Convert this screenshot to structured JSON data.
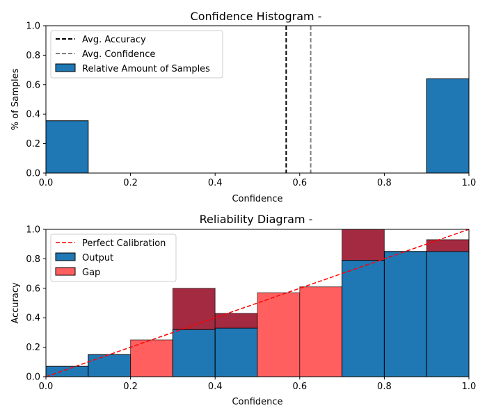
{
  "chart_data": [
    {
      "type": "bar",
      "title": "Confidence Histogram -",
      "xlabel": "Confidence",
      "ylabel": "% of Samples",
      "xlim": [
        0,
        1
      ],
      "ylim": [
        0,
        1
      ],
      "x_ticks": [
        "0.0",
        "0.2",
        "0.4",
        "0.6",
        "0.8",
        "1.0"
      ],
      "y_ticks": [
        "0.0",
        "0.2",
        "0.4",
        "0.6",
        "0.8",
        "1.0"
      ],
      "legend_position": "top-left",
      "legend": [
        "Avg. Accuracy",
        "Avg. Confidence",
        "Relative Amount of Samples"
      ],
      "bins": [
        {
          "x0": 0.0,
          "x1": 0.1,
          "value": 0.355
        },
        {
          "x0": 0.9,
          "x1": 1.0,
          "value": 0.64
        }
      ],
      "avg_accuracy": 0.568,
      "avg_confidence": 0.626,
      "colors": {
        "bars": "#1f77b4",
        "avg_accuracy": "#000000",
        "avg_confidence": "#808080"
      }
    },
    {
      "type": "bar",
      "title": "Reliability Diagram -",
      "xlabel": "Confidence",
      "ylabel": "Accuracy",
      "xlim": [
        0,
        1
      ],
      "ylim": [
        0,
        1
      ],
      "x_ticks": [
        "0.0",
        "0.2",
        "0.4",
        "0.6",
        "0.8",
        "1.0"
      ],
      "y_ticks": [
        "0.0",
        "0.2",
        "0.4",
        "0.6",
        "0.8",
        "1.0"
      ],
      "legend_position": "top-left",
      "legend": [
        "Perfect Calibration",
        "Output",
        "Gap"
      ],
      "bins": [
        {
          "x0": 0.0,
          "x1": 0.1,
          "output": 0.07,
          "expected": 0.07
        },
        {
          "x0": 0.1,
          "x1": 0.2,
          "output": 0.15,
          "expected": 0.15
        },
        {
          "x0": 0.2,
          "x1": 0.3,
          "output": 0.0,
          "expected": 0.25
        },
        {
          "x0": 0.3,
          "x1": 0.4,
          "output": 0.32,
          "expected": 0.6
        },
        {
          "x0": 0.4,
          "x1": 0.5,
          "output": 0.33,
          "expected": 0.43
        },
        {
          "x0": 0.5,
          "x1": 0.6,
          "output": 0.0,
          "expected": 0.57
        },
        {
          "x0": 0.6,
          "x1": 0.7,
          "output": 0.0,
          "expected": 0.61
        },
        {
          "x0": 0.7,
          "x1": 0.8,
          "output": 0.79,
          "expected": 1.0
        },
        {
          "x0": 0.8,
          "x1": 0.9,
          "output": 0.85,
          "expected": 0.85
        },
        {
          "x0": 0.9,
          "x1": 1.0,
          "output": 0.85,
          "expected": 0.93
        }
      ],
      "colors": {
        "output": "#1f77b4",
        "gap": "#ff5f5f",
        "gap_overlap": "#a32a40",
        "perfect": "#ff0000"
      }
    }
  ]
}
